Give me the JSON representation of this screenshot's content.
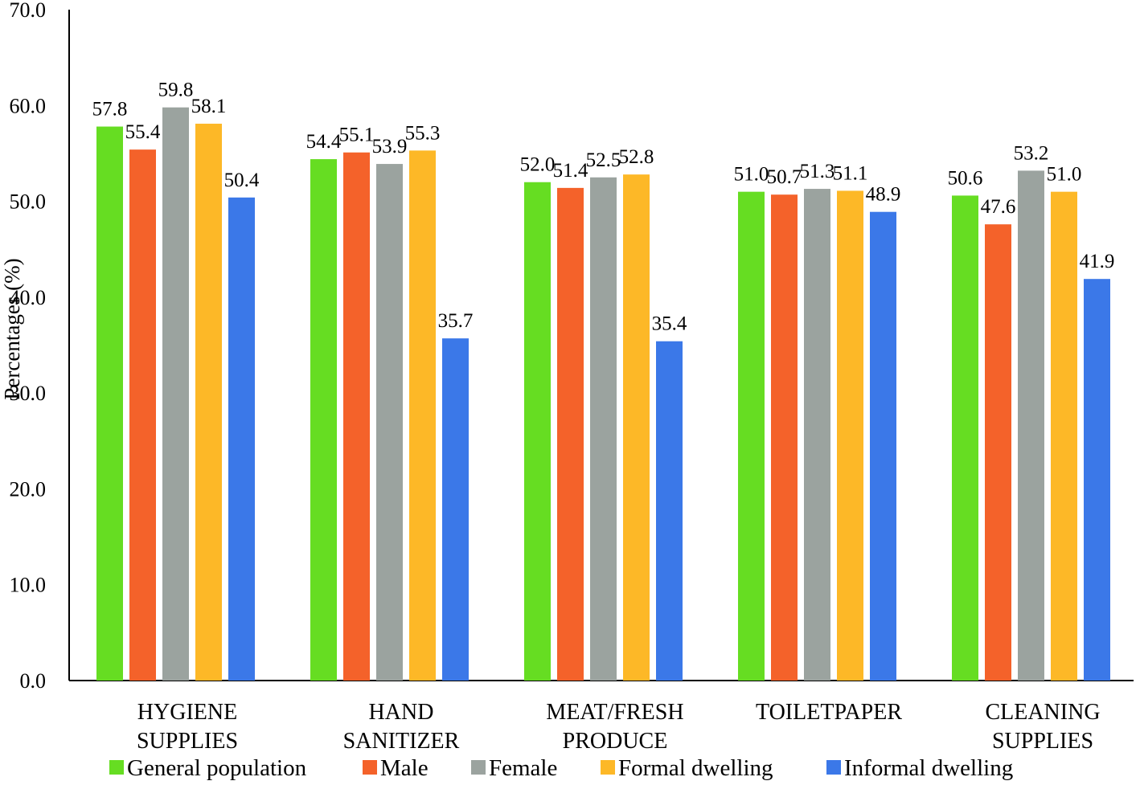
{
  "chart_data": {
    "type": "bar",
    "title": "",
    "xlabel": "",
    "ylabel": "Percentages (%)",
    "ylim": [
      0,
      70
    ],
    "yticks": [
      "0.0",
      "10.0",
      "20.0",
      "30.0",
      "40.0",
      "50.0",
      "60.0",
      "70.0"
    ],
    "categories": [
      [
        "HYGIENE",
        "SUPPLIES"
      ],
      [
        "HAND",
        "SANITIZER"
      ],
      [
        "MEAT/FRESH",
        "PRODUCE"
      ],
      [
        "TOILETPAPER"
      ],
      [
        "CLEANING",
        "SUPPLIES"
      ]
    ],
    "series": [
      {
        "name": "General population",
        "color": "#66dd22",
        "values": [
          57.8,
          54.4,
          52.0,
          51.0,
          50.6
        ]
      },
      {
        "name": "Male",
        "color": "#f4622a",
        "values": [
          55.4,
          55.1,
          51.4,
          50.7,
          47.6
        ]
      },
      {
        "name": "Female",
        "color": "#9ba39f",
        "values": [
          59.8,
          53.9,
          52.5,
          51.3,
          53.2
        ]
      },
      {
        "name": "Formal dwelling",
        "color": "#fdb827",
        "values": [
          58.1,
          55.3,
          52.8,
          51.1,
          51.0
        ]
      },
      {
        "name": "Informal dwelling",
        "color": "#3b78e8",
        "values": [
          50.4,
          35.7,
          35.4,
          48.9,
          41.9
        ]
      }
    ],
    "legend_position": "bottom",
    "grid": false
  }
}
